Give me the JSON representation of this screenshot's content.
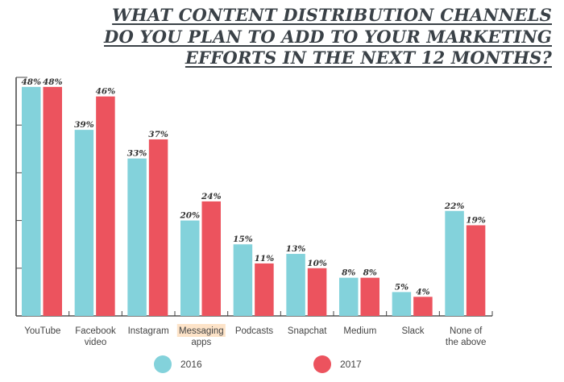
{
  "chart_data": {
    "type": "bar",
    "title_lines": [
      "WHAT CONTENT DISTRIBUTION CHANNELS",
      "DO YOU PLAN TO ADD TO YOUR MARKETING",
      "EFFORTS IN THE NEXT 12 MONTHS?"
    ],
    "categories": [
      [
        "YouTube"
      ],
      [
        "Facebook",
        "video"
      ],
      [
        "Instagram"
      ],
      [
        "Messaging",
        "apps"
      ],
      [
        "Podcasts"
      ],
      [
        "Snapchat"
      ],
      [
        "Medium"
      ],
      [
        "Slack"
      ],
      [
        "None of",
        "the above"
      ]
    ],
    "highlighted_category_index": 3,
    "series": [
      {
        "name": "2016",
        "color": "#83d2db",
        "values": [
          48,
          39,
          33,
          20,
          15,
          13,
          8,
          5,
          22
        ]
      },
      {
        "name": "2017",
        "color": "#ec535e",
        "values": [
          48,
          46,
          37,
          24,
          11,
          10,
          8,
          4,
          19
        ]
      }
    ],
    "value_suffix": "%",
    "ylim": [
      0,
      50
    ],
    "y_tick_step": 10,
    "xlabel": "",
    "ylabel": "",
    "legend_position": "bottom",
    "highlight_color": "#fde3c8"
  }
}
